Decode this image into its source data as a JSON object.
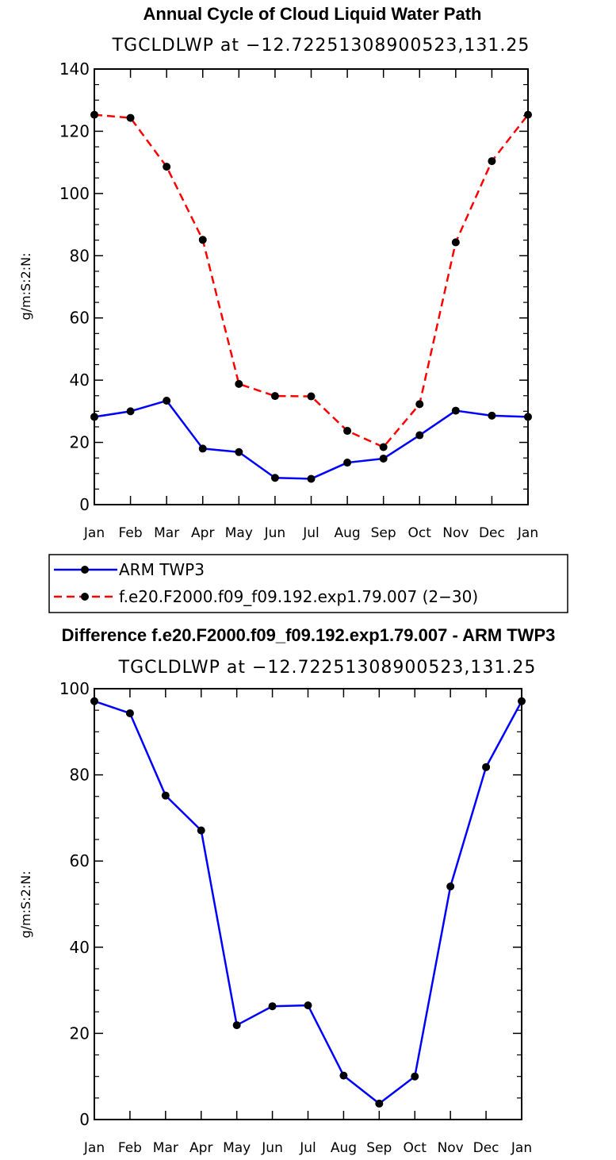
{
  "chart_data": [
    {
      "type": "line",
      "title": "Annual Cycle of Cloud Liquid Water Path",
      "subtitle": "TGCLDLWP at −12.72251308900523,131.25",
      "ylabel": "g/m:S:2:N:",
      "xlabel": "",
      "ylim": [
        0,
        140
      ],
      "yticks": [
        0,
        20,
        40,
        60,
        80,
        100,
        120,
        140
      ],
      "categories": [
        "Jan",
        "Feb",
        "Mar",
        "Apr",
        "May",
        "Jun",
        "Jul",
        "Aug",
        "Sep",
        "Oct",
        "Nov",
        "Dec",
        "Jan"
      ],
      "series": [
        {
          "name": "ARM TWP3",
          "color": "#0000ff",
          "dash": "solid",
          "values": [
            28.2,
            30.0,
            33.4,
            18.0,
            16.9,
            8.6,
            8.3,
            13.5,
            14.8,
            22.3,
            30.2,
            28.6,
            28.2
          ]
        },
        {
          "name": "f.e20.F2000.f09_f09.192.exp1.79.007 (2−30)",
          "color": "#ff0000",
          "dash": "dashed",
          "values": [
            125.3,
            124.3,
            108.6,
            85.1,
            38.8,
            34.9,
            34.8,
            23.7,
            18.5,
            32.3,
            84.3,
            110.4,
            125.3
          ]
        }
      ],
      "legend": "below"
    },
    {
      "type": "line",
      "title": "Difference f.e20.F2000.f09_f09.192.exp1.79.007 - ARM TWP3",
      "subtitle": "TGCLDLWP at −12.72251308900523,131.25",
      "ylabel": "g/m:S:2:N:",
      "xlabel": "",
      "ylim": [
        0,
        100
      ],
      "yticks": [
        0,
        20,
        40,
        60,
        80,
        100
      ],
      "categories": [
        "Jan",
        "Feb",
        "Mar",
        "Apr",
        "May",
        "Jun",
        "Jul",
        "Aug",
        "Sep",
        "Oct",
        "Nov",
        "Dec",
        "Jan"
      ],
      "series": [
        {
          "name": "Difference",
          "color": "#0000ff",
          "dash": "solid",
          "values": [
            97.1,
            94.3,
            75.2,
            67.1,
            21.9,
            26.3,
            26.5,
            10.2,
            3.7,
            10.0,
            54.1,
            81.8,
            97.1
          ]
        }
      ]
    }
  ]
}
